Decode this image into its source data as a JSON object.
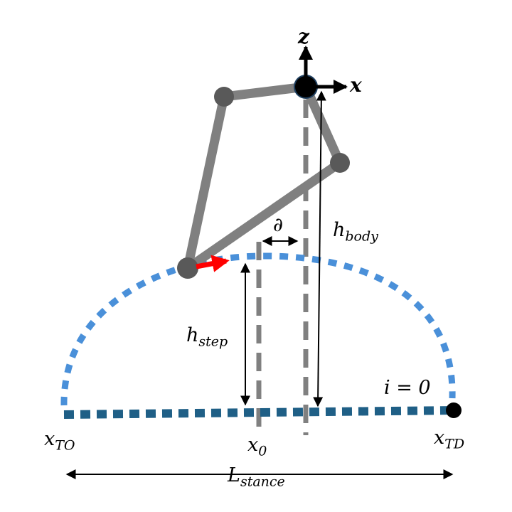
{
  "labels": {
    "z_axis": "z",
    "x_axis": "x",
    "partial": "∂",
    "h_body": {
      "base": "h",
      "sub": "body"
    },
    "h_step": {
      "base": "h",
      "sub": "step"
    },
    "i_zero": "i = 0",
    "x_to": {
      "base": "x",
      "sub": "TO"
    },
    "x_0": {
      "base": "x",
      "sub": "0"
    },
    "x_td": {
      "base": "x",
      "sub": "TD"
    },
    "l_stance": {
      "base": "L",
      "sub": "stance"
    }
  },
  "colors": {
    "leg": "#808080",
    "joint": "#595959",
    "swing_arc": "#4a90d9",
    "stance_line": "#1f5f86",
    "velocity_arrow": "#ff0000",
    "foot": "#000000"
  }
}
